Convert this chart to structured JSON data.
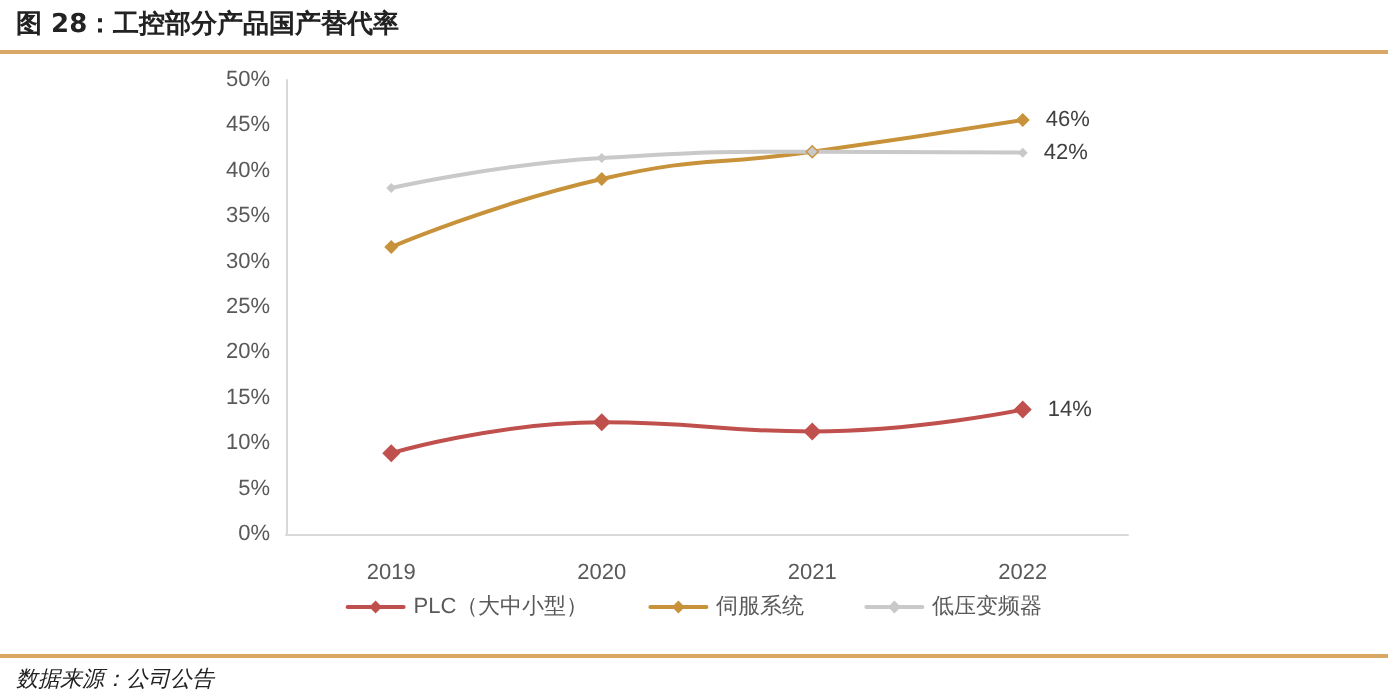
{
  "chart_data": {
    "type": "line",
    "title": "图 28：工控部分产品国产替代率",
    "categories": [
      "2019",
      "2020",
      "2021",
      "2022"
    ],
    "series": [
      {
        "name": "PLC（大中小型）",
        "color": "#c0504d",
        "values": [
          8.9,
          12.3,
          11.3,
          13.7
        ],
        "value_labels": [
          null,
          null,
          null,
          "14%"
        ]
      },
      {
        "name": "伺服系统",
        "color": "#c8923a",
        "values": [
          31.6,
          39.1,
          42.1,
          45.6
        ],
        "value_labels": [
          null,
          null,
          null,
          "46%"
        ]
      },
      {
        "name": "低压变频器",
        "color": "#c9c9c9",
        "values": [
          38.1,
          41.4,
          42.1,
          42.0
        ],
        "value_labels": [
          null,
          null,
          null,
          "42%"
        ]
      }
    ],
    "ylim": [
      0,
      50
    ],
    "yticks": [
      {
        "value": 0,
        "label": "0%"
      },
      {
        "value": 5,
        "label": "5%"
      },
      {
        "value": 10,
        "label": "10%"
      },
      {
        "value": 15,
        "label": "15%"
      },
      {
        "value": 20,
        "label": "20%"
      },
      {
        "value": 25,
        "label": "25%"
      },
      {
        "value": 30,
        "label": "30%"
      },
      {
        "value": 35,
        "label": "35%"
      },
      {
        "value": 40,
        "label": "40%"
      },
      {
        "value": 45,
        "label": "45%"
      },
      {
        "value": 50,
        "label": "50%"
      }
    ],
    "grid": false,
    "legend": "bottom",
    "marker": "diamond",
    "line_style": "solid",
    "annotations": [
      "数据来源：公司公告"
    ]
  }
}
